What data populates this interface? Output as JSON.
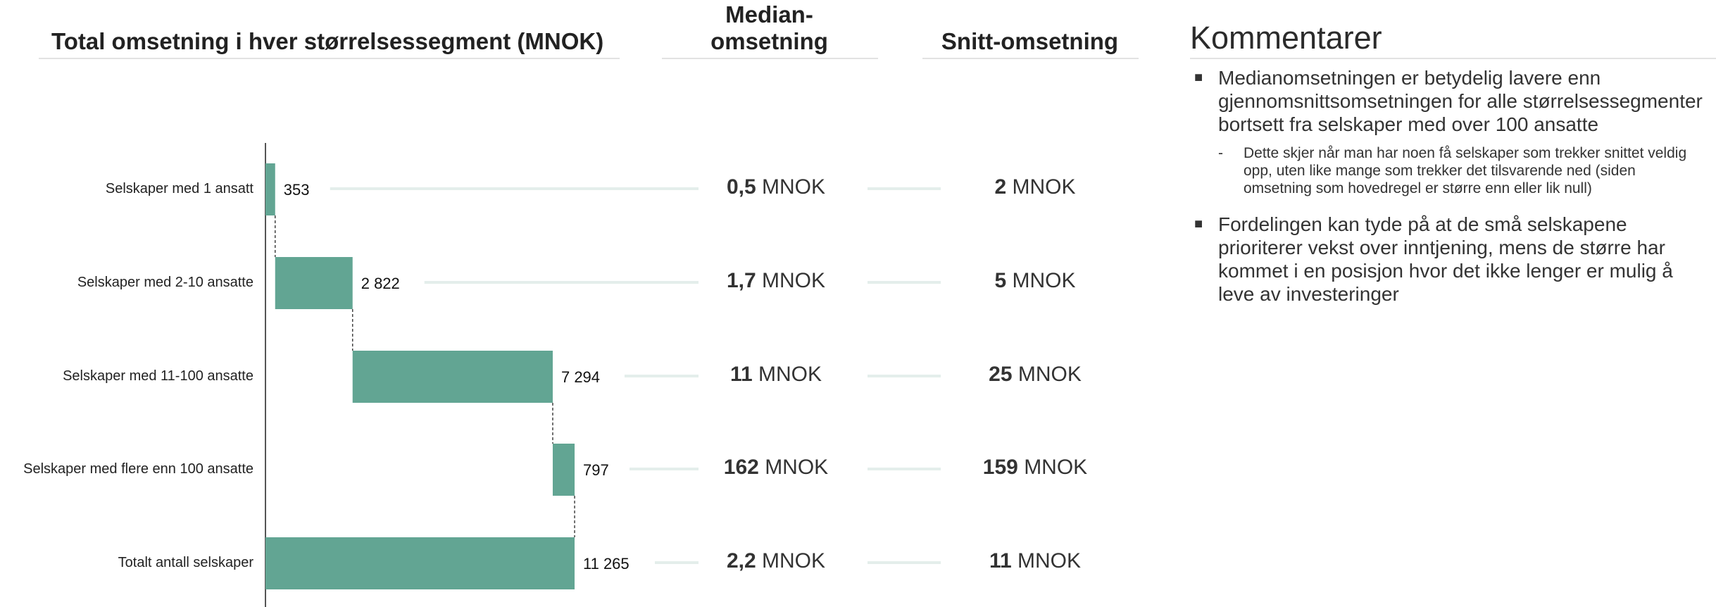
{
  "headers": {
    "chart_title": "Total omsetning i hver størrelsessegment (MNOK)",
    "median_title_line1": "Median-",
    "median_title_line2": "omsetning",
    "avg_title": "Snitt-omsetning"
  },
  "comments": {
    "title": "Kommentarer",
    "bullets": [
      {
        "text": "Medianomsetningen er betydelig lavere enn gjennomsnittsomsetningen for alle størrelsessegmenter bortsett fra selskaper med over 100 ansatte",
        "sub": "Dette skjer når man har noen få selskaper som trekker snittet veldig opp, uten like mange som trekker det tilsvarende ned (siden omsetning som hovedregel er større enn eller lik null)"
      },
      {
        "text": "Fordelingen kan tyde på at de små selskapene prioriterer vekst over inntjening, mens de større har kommet i en posisjon hvor det ikke lenger er mulig å leve av investeringer"
      }
    ]
  },
  "colors": {
    "bar": "#62a593",
    "connector_line": "#e4eeeb"
  },
  "chart_data": {
    "type": "bar",
    "subtype": "waterfall-horizontal",
    "title": "Total omsetning i hver størrelsessegment (MNOK)",
    "categories": [
      "Selskaper med 1 ansatt",
      "Selskaper med 2-10 ansatte",
      "Selskaper med 11-100 ansatte",
      "Selskaper med flere enn 100 ansatte",
      "Totalt antall selskaper"
    ],
    "values": [
      353,
      2822,
      7294,
      797,
      11265
    ],
    "value_labels": [
      "353",
      "2 822",
      "7 294",
      "797",
      "11 265"
    ],
    "is_total": [
      false,
      false,
      false,
      false,
      true
    ],
    "xlim": [
      0,
      11265
    ],
    "median": [
      {
        "value": "0,5",
        "unit": "MNOK"
      },
      {
        "value": "1,7",
        "unit": "MNOK"
      },
      {
        "value": "11",
        "unit": "MNOK"
      },
      {
        "value": "162",
        "unit": "MNOK"
      },
      {
        "value": "2,2",
        "unit": "MNOK"
      }
    ],
    "average": [
      {
        "value": "2",
        "unit": "MNOK"
      },
      {
        "value": "5",
        "unit": "MNOK"
      },
      {
        "value": "25",
        "unit": "MNOK"
      },
      {
        "value": "159",
        "unit": "MNOK"
      },
      {
        "value": "11",
        "unit": "MNOK"
      }
    ]
  }
}
